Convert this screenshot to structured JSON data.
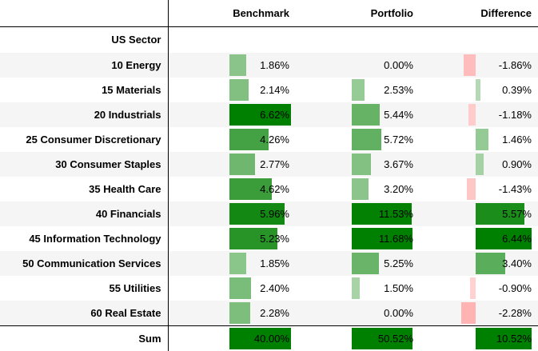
{
  "columns": {
    "benchmark": "Benchmark",
    "portfolio": "Portfolio",
    "difference": "Difference"
  },
  "index_name": "US Sector",
  "colors": {
    "positive": "#008000",
    "negative": "#ff0000",
    "zebra": "#f5f5f5",
    "rule": "#000000"
  },
  "chart_data": {
    "type": "table",
    "column_headers": [
      "Benchmark",
      "Portfolio",
      "Difference"
    ],
    "index_label": "US Sector",
    "rows": [
      {
        "sector": "10 Energy",
        "benchmark": 1.86,
        "portfolio": 0.0,
        "difference": -1.86,
        "benchmark_text": "1.86%",
        "portfolio_text": "0.00%",
        "difference_text": "-1.86%"
      },
      {
        "sector": "15 Materials",
        "benchmark": 2.14,
        "portfolio": 2.53,
        "difference": 0.39,
        "benchmark_text": "2.14%",
        "portfolio_text": "2.53%",
        "difference_text": "0.39%"
      },
      {
        "sector": "20 Industrials",
        "benchmark": 6.62,
        "portfolio": 5.44,
        "difference": -1.18,
        "benchmark_text": "6.62%",
        "portfolio_text": "5.44%",
        "difference_text": "-1.18%"
      },
      {
        "sector": "25 Consumer Discretionary",
        "benchmark": 4.26,
        "portfolio": 5.72,
        "difference": 1.46,
        "benchmark_text": "4.26%",
        "portfolio_text": "5.72%",
        "difference_text": "1.46%"
      },
      {
        "sector": "30 Consumer Staples",
        "benchmark": 2.77,
        "portfolio": 3.67,
        "difference": 0.9,
        "benchmark_text": "2.77%",
        "portfolio_text": "3.67%",
        "difference_text": "0.90%"
      },
      {
        "sector": "35 Health Care",
        "benchmark": 4.62,
        "portfolio": 3.2,
        "difference": -1.43,
        "benchmark_text": "4.62%",
        "portfolio_text": "3.20%",
        "difference_text": "-1.43%"
      },
      {
        "sector": "40 Financials",
        "benchmark": 5.96,
        "portfolio": 11.53,
        "difference": 5.57,
        "benchmark_text": "5.96%",
        "portfolio_text": "11.53%",
        "difference_text": "5.57%"
      },
      {
        "sector": "45 Information Technology",
        "benchmark": 5.23,
        "portfolio": 11.68,
        "difference": 6.44,
        "benchmark_text": "5.23%",
        "portfolio_text": "11.68%",
        "difference_text": "6.44%"
      },
      {
        "sector": "50 Communication Services",
        "benchmark": 1.85,
        "portfolio": 5.25,
        "difference": 3.4,
        "benchmark_text": "1.85%",
        "portfolio_text": "5.25%",
        "difference_text": "3.40%"
      },
      {
        "sector": "55 Utilities",
        "benchmark": 2.4,
        "portfolio": 1.5,
        "difference": -0.9,
        "benchmark_text": "2.40%",
        "portfolio_text": "1.50%",
        "difference_text": "-0.90%"
      },
      {
        "sector": "60 Real Estate",
        "benchmark": 2.28,
        "portfolio": 0.0,
        "difference": -2.28,
        "benchmark_text": "2.28%",
        "portfolio_text": "0.00%",
        "difference_text": "-2.28%"
      }
    ],
    "sum": {
      "label": "Sum",
      "benchmark": 40.0,
      "portfolio": 50.52,
      "difference": 10.52,
      "benchmark_text": "40.00%",
      "portfolio_text": "50.52%",
      "difference_text": "10.52%"
    }
  }
}
